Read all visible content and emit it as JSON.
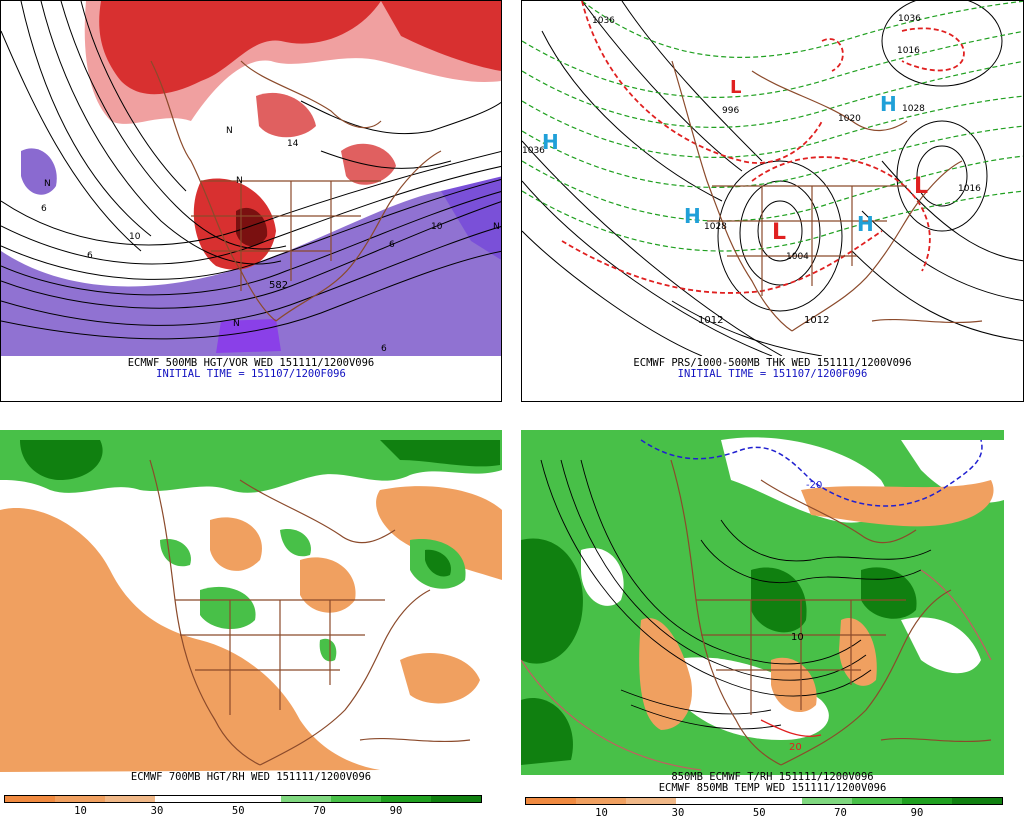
{
  "panels": [
    {
      "id": "tl",
      "caption1": "ECMWF 500MB HGT/VOR WED 151111/1200V096",
      "caption2": "INITIAL TIME = 151107/1200F096",
      "labels": [
        "582",
        "N",
        "N",
        "N",
        "N",
        "N",
        "6",
        "6",
        "6",
        "6",
        "10",
        "10",
        "14"
      ]
    },
    {
      "id": "tr",
      "caption1": "ECMWF PRS/1000-500MB THK WED 151111/1200V096",
      "caption2": "INITIAL TIME = 151107/1200F096",
      "labels": [
        "H",
        "H",
        "H",
        "H",
        "L",
        "L",
        "L",
        "1012",
        "1012",
        "1004",
        "1020",
        "1028",
        "1028",
        "1016",
        "996",
        "1036",
        "1036",
        "1036",
        "1016"
      ]
    },
    {
      "id": "bl",
      "caption1": "ECMWF 700MB HGT/RH WED 151111/1200V096",
      "colorbar": {
        "ticks": [
          "10",
          "30",
          "50",
          "70",
          "90"
        ]
      }
    },
    {
      "id": "br",
      "caption1": "850MB ECMWF T/RH 151111/1200V096",
      "caption2": "ECMWF 850MB TEMP WED 151111/1200V096",
      "labels": [
        "10",
        "20",
        "-20"
      ],
      "colorbar": {
        "ticks": [
          "10",
          "30",
          "50",
          "70",
          "90"
        ]
      }
    }
  ],
  "colors": {
    "vorticity_red": "#d83030",
    "vorticity_pink": "#f0a0a0",
    "vorticity_purple": "#8a6ad0",
    "rh_orange": "#f0a060",
    "rh_green_light": "#48c048",
    "rh_green_dark": "#108010",
    "coast_brown": "#8b4a2b",
    "thickness_red": "#e02020",
    "thickness_green": "#20a020",
    "high_cyan": "#20a0d8",
    "low_red": "#e02020",
    "caption_blue": "#1010c0"
  }
}
